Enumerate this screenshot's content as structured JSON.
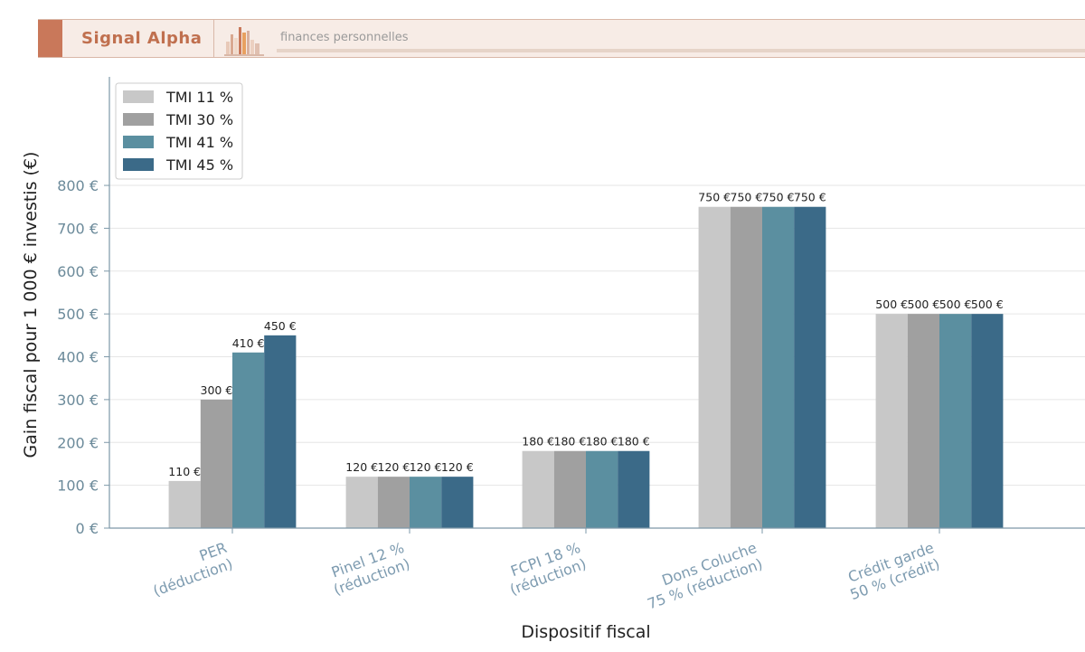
{
  "header": {
    "brand": "Signal Alpha",
    "tagline": "finances personnelles"
  },
  "colors": {
    "brand_accent": "#c9785a",
    "brand_text": "#c0704f"
  },
  "chart_data": {
    "type": "bar",
    "categories": [
      [
        "PER",
        "(déduction)"
      ],
      [
        "Pinel 12 %",
        "(réduction)"
      ],
      [
        "FCPI 18 %",
        "(réduction)"
      ],
      [
        "Dons Coluche",
        "75 % (réduction)"
      ],
      [
        "Crédit garde",
        "50 % (crédit)"
      ]
    ],
    "series": [
      {
        "name": "TMI 11 %",
        "color": "#c8c8c8",
        "values": [
          110,
          120,
          180,
          750,
          500
        ],
        "labels": [
          "110 €",
          "120 €",
          "180 €",
          "750 €",
          "500 €"
        ]
      },
      {
        "name": "TMI 30 %",
        "color": "#a0a0a0",
        "values": [
          300,
          120,
          180,
          750,
          500
        ],
        "labels": [
          "300 €",
          "120 €",
          "180 €",
          "750 €",
          "500 €"
        ]
      },
      {
        "name": "TMI 41 %",
        "color": "#5b8fa0",
        "values": [
          410,
          120,
          180,
          750,
          500
        ],
        "labels": [
          "410 €",
          "120 €",
          "180 €",
          "750 €",
          "500 €"
        ]
      },
      {
        "name": "TMI 45 %",
        "color": "#3b6a88",
        "values": [
          450,
          120,
          180,
          750,
          500
        ],
        "labels": [
          "450 €",
          "120 €",
          "180 €",
          "750 €",
          "500 €"
        ]
      }
    ],
    "xlabel": "Dispositif fiscal",
    "ylabel": "Gain fiscal pour 1 000 € investis (€)",
    "ylim": [
      0,
      1000
    ],
    "yticks": [
      0,
      100,
      200,
      300,
      400,
      500,
      600,
      700,
      800
    ],
    "ytick_labels": [
      "0 €",
      "100 €",
      "200 €",
      "300 €",
      "400 €",
      "500 €",
      "600 €",
      "700 €",
      "800 €"
    ],
    "grid": "horizontal",
    "legend_position": "top-left"
  }
}
